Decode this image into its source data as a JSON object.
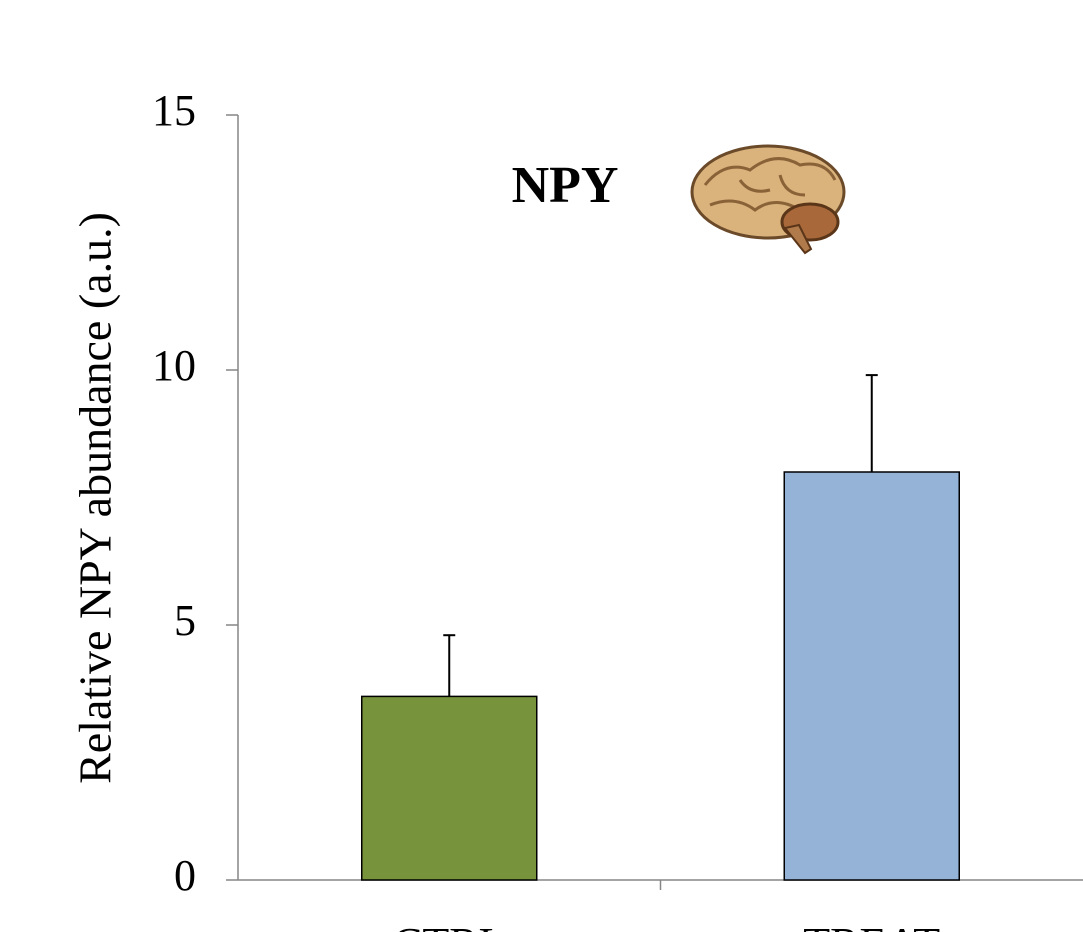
{
  "chart_data": {
    "type": "bar",
    "title": "NPY",
    "y_label": "Relative NPY abundance (a.u.)",
    "categories": [
      "CTRL",
      "TREAT"
    ],
    "values": [
      3.6,
      8.0
    ],
    "errors": [
      1.2,
      1.9
    ],
    "colors": [
      "#77933c",
      "#95b3d7"
    ],
    "ylim": [
      0,
      15
    ],
    "yticks": [
      0,
      5,
      10,
      15
    ],
    "grid": false
  }
}
